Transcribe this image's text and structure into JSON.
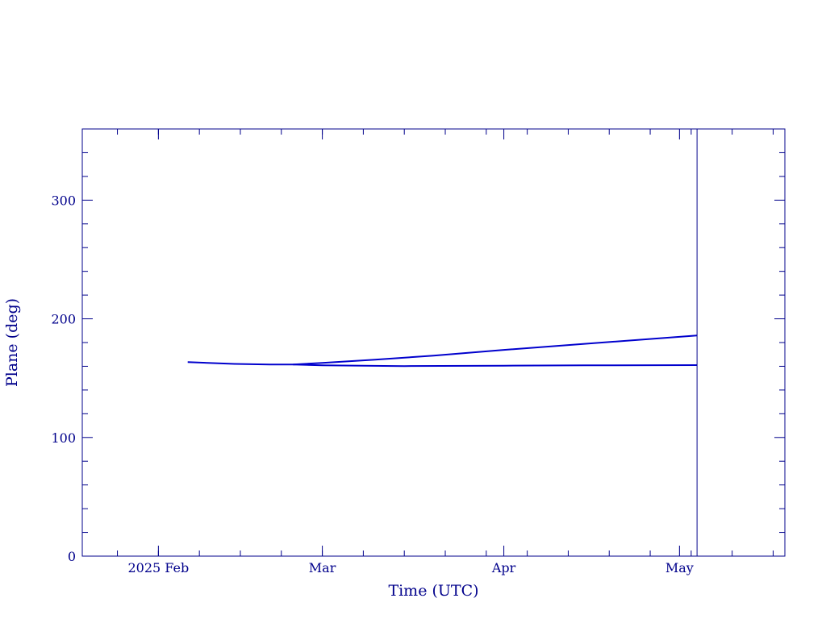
{
  "colors": {
    "axis": "#00008b",
    "series": "#0000cd",
    "marker": "#00008b"
  },
  "chart_data": {
    "type": "line",
    "title": "",
    "xlabel": "Time (UTC)",
    "ylabel": "Plane (deg)",
    "xlim": [
      "2025-01-19",
      "2025-05-19"
    ],
    "ylim": [
      0,
      360
    ],
    "grid": false,
    "x_ticks": [
      {
        "date": "2025-02-01",
        "label": "2025 Feb"
      },
      {
        "date": "2025-03-01",
        "label": "Mar"
      },
      {
        "date": "2025-04-01",
        "label": "Apr"
      },
      {
        "date": "2025-05-01",
        "label": "May"
      }
    ],
    "y_ticks": [
      {
        "value": 0,
        "label": "0"
      },
      {
        "value": 100,
        "label": "100"
      },
      {
        "value": 200,
        "label": "200"
      },
      {
        "value": 300,
        "label": "300"
      }
    ],
    "series": [
      {
        "points": [
          [
            "2025-02-06",
            163.5
          ],
          [
            "2025-02-14",
            162.0
          ],
          [
            "2025-02-20",
            161.5
          ],
          [
            "2025-02-24",
            161.5
          ],
          [
            "2025-03-01",
            162.8
          ],
          [
            "2025-03-10",
            165.5
          ],
          [
            "2025-03-20",
            169.0
          ],
          [
            "2025-04-01",
            173.8
          ],
          [
            "2025-04-15",
            179.0
          ],
          [
            "2025-05-04",
            186.0
          ]
        ]
      },
      {
        "points": [
          [
            "2025-02-24",
            161.5
          ],
          [
            "2025-03-01",
            160.8
          ],
          [
            "2025-03-15",
            160.2
          ],
          [
            "2025-04-01",
            160.5
          ],
          [
            "2025-04-15",
            160.8
          ],
          [
            "2025-05-04",
            161.0
          ]
        ]
      }
    ],
    "vline": {
      "date": "2025-05-04"
    }
  }
}
